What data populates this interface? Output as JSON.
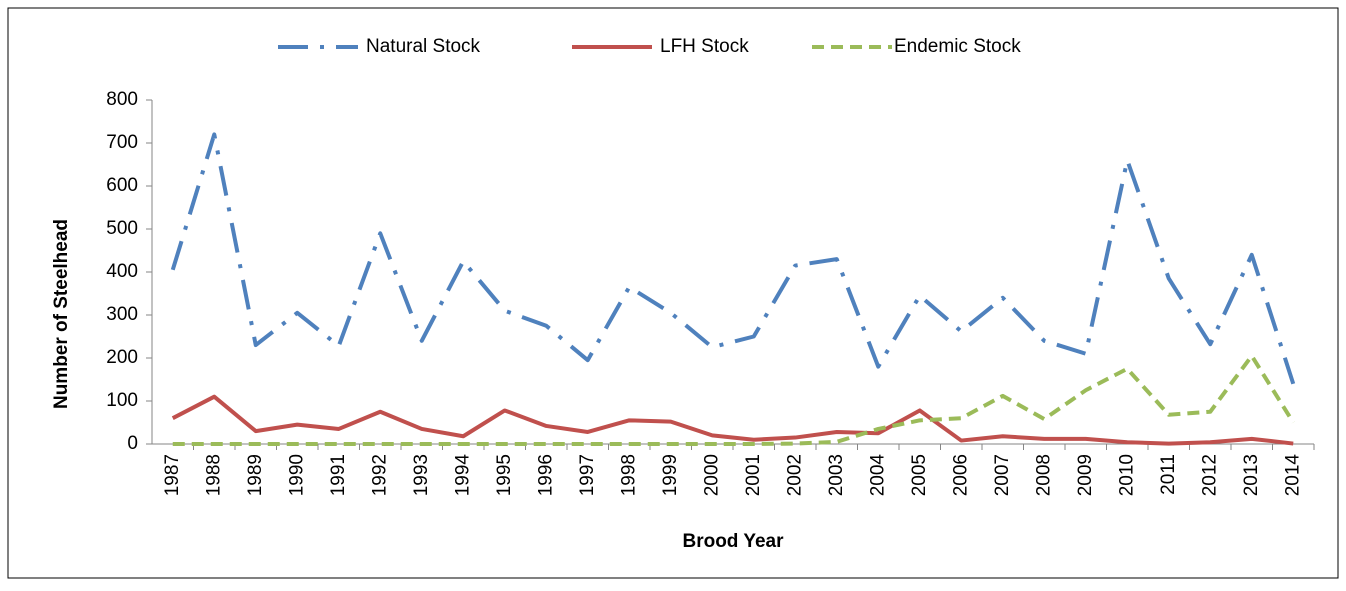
{
  "chart_data": {
    "type": "line",
    "x_label": "Brood Year",
    "y_label": "Number of Steelhead",
    "categories": [
      "1987",
      "1988",
      "1989",
      "1990",
      "1991",
      "1992",
      "1993",
      "1994",
      "1995",
      "1996",
      "1997",
      "1998",
      "1999",
      "2000",
      "2001",
      "2002",
      "2003",
      "2004",
      "2005",
      "2006",
      "2007",
      "2008",
      "2009",
      "2010",
      "2011",
      "2012",
      "2013",
      "2014"
    ],
    "series": [
      {
        "name": "Natural Stock",
        "color": "#4f81bd",
        "values": [
          405,
          720,
          230,
          305,
          228,
          490,
          240,
          425,
          310,
          275,
          195,
          365,
          305,
          225,
          250,
          415,
          430,
          180,
          345,
          262,
          340,
          240,
          210,
          660,
          385,
          232,
          440,
          140
        ]
      },
      {
        "name": "LFH Stock",
        "color": "#c0504d",
        "values": [
          60,
          110,
          30,
          45,
          35,
          75,
          35,
          18,
          78,
          42,
          28,
          55,
          52,
          20,
          10,
          15,
          28,
          25,
          78,
          8,
          18,
          12,
          12,
          4,
          1,
          4,
          12,
          1
        ]
      },
      {
        "name": "Endemic Stock",
        "color": "#9bbb59",
        "values": [
          0,
          0,
          0,
          0,
          0,
          0,
          0,
          0,
          0,
          0,
          0,
          0,
          0,
          0,
          0,
          1,
          5,
          35,
          55,
          60,
          112,
          58,
          125,
          175,
          68,
          75,
          205,
          50
        ]
      }
    ],
    "ylim": [
      0,
      800
    ],
    "yticks": [
      0,
      100,
      200,
      300,
      400,
      500,
      600,
      700,
      800
    ],
    "legend": "top"
  }
}
